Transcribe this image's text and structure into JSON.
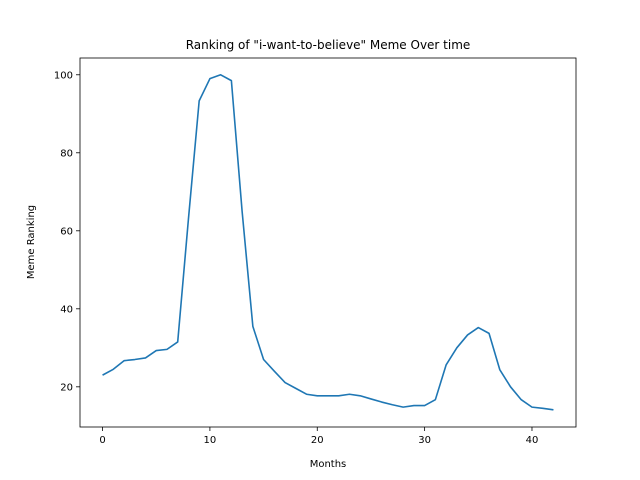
{
  "chart_data": {
    "type": "line",
    "title": "Ranking of \"i-want-to-believe\" Meme Over time",
    "xlabel": "Months",
    "ylabel": "Meme Ranking",
    "xlim": [
      -2.1,
      44.1
    ],
    "ylim": [
      9.7,
      104.3
    ],
    "xticks": [
      0,
      10,
      20,
      30,
      40
    ],
    "yticks": [
      20,
      40,
      60,
      80,
      100
    ],
    "grid": false,
    "line_color": "#1f77b4",
    "series": [
      {
        "x": [
          0,
          1,
          2,
          3,
          4,
          5,
          6,
          7,
          8,
          9,
          10,
          11,
          12,
          13,
          14,
          15,
          16,
          17,
          18,
          19,
          20,
          21,
          22,
          23,
          24,
          25,
          26,
          27,
          28,
          29,
          30,
          31,
          32,
          33,
          34,
          35,
          36,
          37,
          38,
          39,
          40,
          41,
          42
        ],
        "values": [
          23,
          24.5,
          26.7,
          27,
          27.4,
          29.3,
          29.6,
          31.5,
          63,
          93.3,
          99,
          100,
          98.5,
          65,
          35.5,
          27,
          24,
          21.1,
          19.6,
          18.1,
          17.7,
          17.7,
          17.7,
          18.1,
          17.7,
          16.9,
          16.1,
          15.4,
          14.8,
          15.2,
          15.2,
          16.7,
          25.6,
          30,
          33.3,
          35.2,
          33.7,
          24.4,
          20,
          16.7,
          14.8,
          14.5,
          14.1
        ]
      }
    ]
  }
}
